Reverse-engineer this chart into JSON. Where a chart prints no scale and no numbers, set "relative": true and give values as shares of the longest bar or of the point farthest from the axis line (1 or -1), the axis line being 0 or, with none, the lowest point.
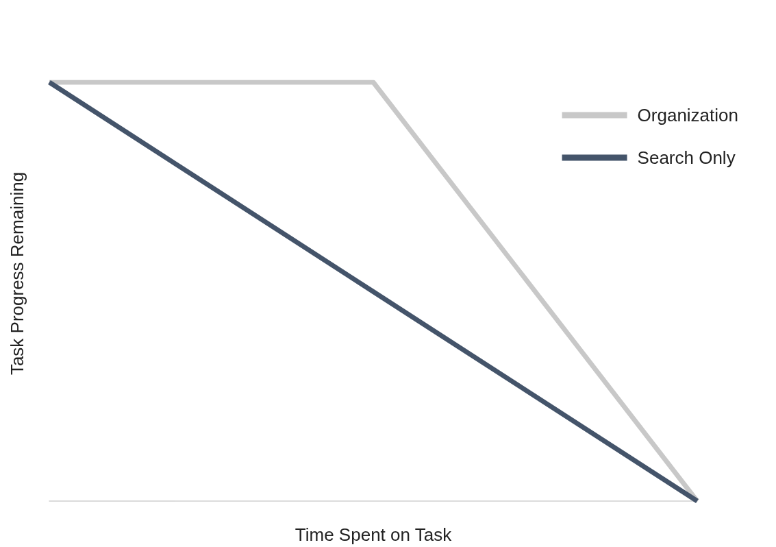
{
  "chart_data": {
    "type": "line",
    "xlabel": "Time Spent on Task",
    "ylabel": "Task Progress Remaining",
    "relative": true,
    "categories": [
      null,
      null,
      null
    ],
    "legend": "top right",
    "grid": false,
    "marker": "none",
    "line_style": "solid",
    "series": [
      {
        "name": "Organization",
        "color": "#c8c8c8",
        "values": [
          1,
          1,
          0
        ]
      },
      {
        "name": "Search Only",
        "color": "#44546a",
        "values": [
          1,
          0.5,
          0
        ]
      }
    ]
  }
}
